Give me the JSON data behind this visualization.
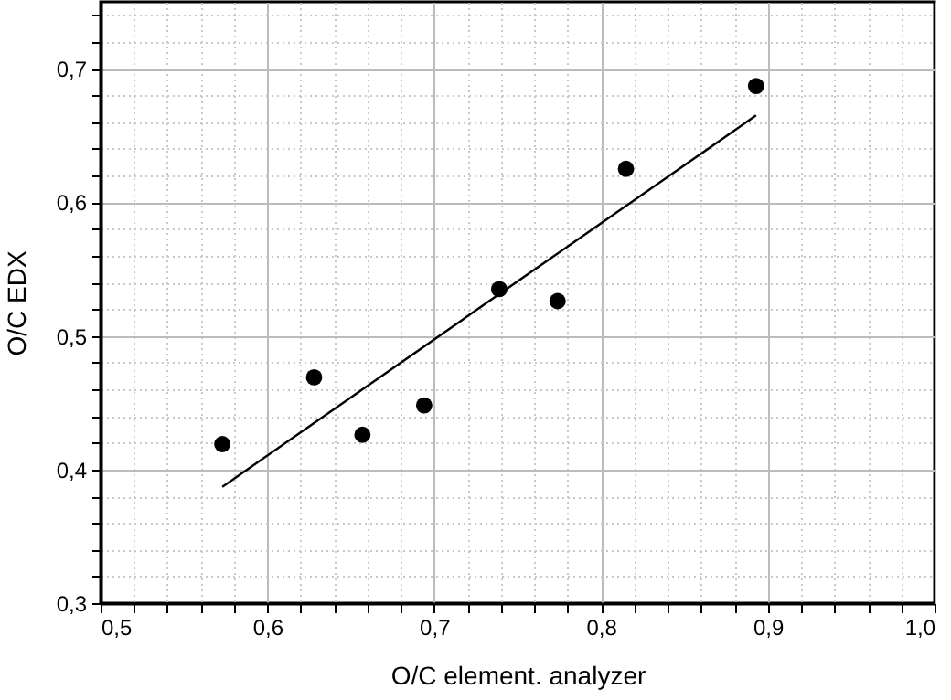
{
  "chart_data": {
    "type": "scatter",
    "xlabel": "O/C element. analyzer",
    "ylabel": "O/C EDX",
    "xlim": [
      0.5,
      1.0
    ],
    "ylim": [
      0.3,
      0.75
    ],
    "xticks": [
      {
        "value": 0.5,
        "label": "0,5"
      },
      {
        "value": 0.52,
        "label": null
      },
      {
        "value": 0.54,
        "label": null
      },
      {
        "value": 0.56,
        "label": null
      },
      {
        "value": 0.58,
        "label": null
      },
      {
        "value": 0.6,
        "label": "0,6"
      },
      {
        "value": 0.62,
        "label": null
      },
      {
        "value": 0.64,
        "label": null
      },
      {
        "value": 0.66,
        "label": null
      },
      {
        "value": 0.68,
        "label": null
      },
      {
        "value": 0.7,
        "label": "0,7"
      },
      {
        "value": 0.72,
        "label": null
      },
      {
        "value": 0.74,
        "label": null
      },
      {
        "value": 0.76,
        "label": null
      },
      {
        "value": 0.78,
        "label": null
      },
      {
        "value": 0.8,
        "label": "0,8"
      },
      {
        "value": 0.82,
        "label": null
      },
      {
        "value": 0.84,
        "label": null
      },
      {
        "value": 0.86,
        "label": null
      },
      {
        "value": 0.88,
        "label": null
      },
      {
        "value": 0.9,
        "label": "0,9"
      },
      {
        "value": 0.92,
        "label": null
      },
      {
        "value": 0.94,
        "label": null
      },
      {
        "value": 0.96,
        "label": null
      },
      {
        "value": 0.98,
        "label": null
      },
      {
        "value": 1.0,
        "label": "1,0"
      }
    ],
    "yticks": [
      {
        "value": 0.3,
        "label": "0,3"
      },
      {
        "value": 0.32,
        "label": null
      },
      {
        "value": 0.34,
        "label": null
      },
      {
        "value": 0.36,
        "label": null
      },
      {
        "value": 0.38,
        "label": null
      },
      {
        "value": 0.4,
        "label": "0,4"
      },
      {
        "value": 0.42,
        "label": null
      },
      {
        "value": 0.44,
        "label": null
      },
      {
        "value": 0.46,
        "label": null
      },
      {
        "value": 0.48,
        "label": null
      },
      {
        "value": 0.5,
        "label": "0,5"
      },
      {
        "value": 0.52,
        "label": null
      },
      {
        "value": 0.54,
        "label": null
      },
      {
        "value": 0.56,
        "label": null
      },
      {
        "value": 0.58,
        "label": null
      },
      {
        "value": 0.6,
        "label": "0,6"
      },
      {
        "value": 0.62,
        "label": null
      },
      {
        "value": 0.64,
        "label": null
      },
      {
        "value": 0.66,
        "label": null
      },
      {
        "value": 0.68,
        "label": null
      },
      {
        "value": 0.7,
        "label": "0,7"
      },
      {
        "value": 0.72,
        "label": null
      },
      {
        "value": 0.74,
        "label": null
      }
    ],
    "grid": true,
    "series": [
      {
        "marker": "circle",
        "color": "#000000",
        "x": [
          0.573,
          0.628,
          0.657,
          0.694,
          0.739,
          0.774,
          0.815,
          0.893
        ],
        "values": [
          0.419,
          0.469,
          0.426,
          0.448,
          0.535,
          0.526,
          0.625,
          0.687
        ]
      },
      {
        "type": "line",
        "color": "#000000",
        "line_style": "solid",
        "x": [
          0.573,
          0.893
        ],
        "values": [
          0.387,
          0.665
        ]
      }
    ]
  }
}
